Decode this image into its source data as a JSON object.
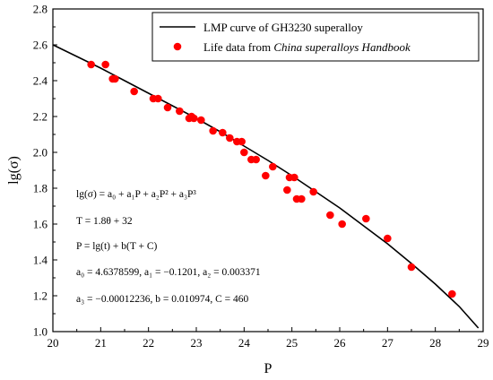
{
  "chart_data": {
    "type": "scatter",
    "title": "",
    "xlabel": "P",
    "ylabel": "lg(σ)",
    "xlim": [
      20,
      29
    ],
    "ylim": [
      1.0,
      2.8
    ],
    "xticks": [
      "20",
      "21",
      "22",
      "23",
      "24",
      "25",
      "26",
      "27",
      "28",
      "29"
    ],
    "yticks": [
      "1.0",
      "1.2",
      "1.4",
      "1.6",
      "1.8",
      "2.0",
      "2.2",
      "2.4",
      "2.6",
      "2.8"
    ],
    "grid": false,
    "legend_position": "top-right",
    "series": [
      {
        "name": "LMP curve of GH3230 superalloy",
        "kind": "line",
        "color": "#000000",
        "x": [
          20.0,
          20.5,
          21.0,
          21.5,
          22.0,
          22.5,
          23.0,
          23.5,
          24.0,
          24.5,
          25.0,
          25.5,
          26.0,
          26.5,
          27.0,
          27.5,
          28.0,
          28.5,
          28.9
        ],
        "y": [
          2.6,
          2.535,
          2.47,
          2.4,
          2.33,
          2.26,
          2.19,
          2.115,
          2.035,
          1.955,
          1.87,
          1.78,
          1.69,
          1.59,
          1.49,
          1.38,
          1.265,
          1.14,
          1.02
        ]
      },
      {
        "name": "Life data from China superalloys Handbook",
        "name_prefix": "Life data from ",
        "name_italic": "China superalloys Handbook",
        "kind": "scatter",
        "color": "#ff0000",
        "x": [
          20.8,
          21.1,
          21.25,
          21.3,
          21.7,
          22.1,
          22.2,
          22.4,
          22.65,
          22.85,
          22.9,
          22.95,
          23.1,
          23.35,
          23.55,
          23.7,
          23.85,
          23.95,
          24.0,
          24.15,
          24.25,
          24.45,
          24.6,
          24.9,
          24.95,
          25.05,
          25.1,
          25.2,
          25.45,
          25.8,
          26.05,
          26.55,
          27.0,
          27.5,
          28.35
        ],
        "y": [
          2.49,
          2.49,
          2.41,
          2.41,
          2.34,
          2.3,
          2.3,
          2.25,
          2.23,
          2.19,
          2.2,
          2.19,
          2.18,
          2.12,
          2.11,
          2.08,
          2.06,
          2.06,
          2.0,
          1.96,
          1.96,
          1.87,
          1.92,
          1.79,
          1.86,
          1.86,
          1.74,
          1.74,
          1.78,
          1.65,
          1.6,
          1.63,
          1.52,
          1.36,
          1.21
        ]
      }
    ],
    "annotations": {
      "eq1": "lg(σ) = a₀ + a₁P + a₂P² + a₃P³",
      "eq2": "T = 1.8θ + 32",
      "eq3": "P = lg(t) + b(T + C)",
      "eq4": "a₀ = 4.6378599,  a₁ = −0.1201,  a₂ = 0.003371",
      "eq5": "a₃ = −0.00012236,  b = 0.010974,  C = 460"
    }
  }
}
